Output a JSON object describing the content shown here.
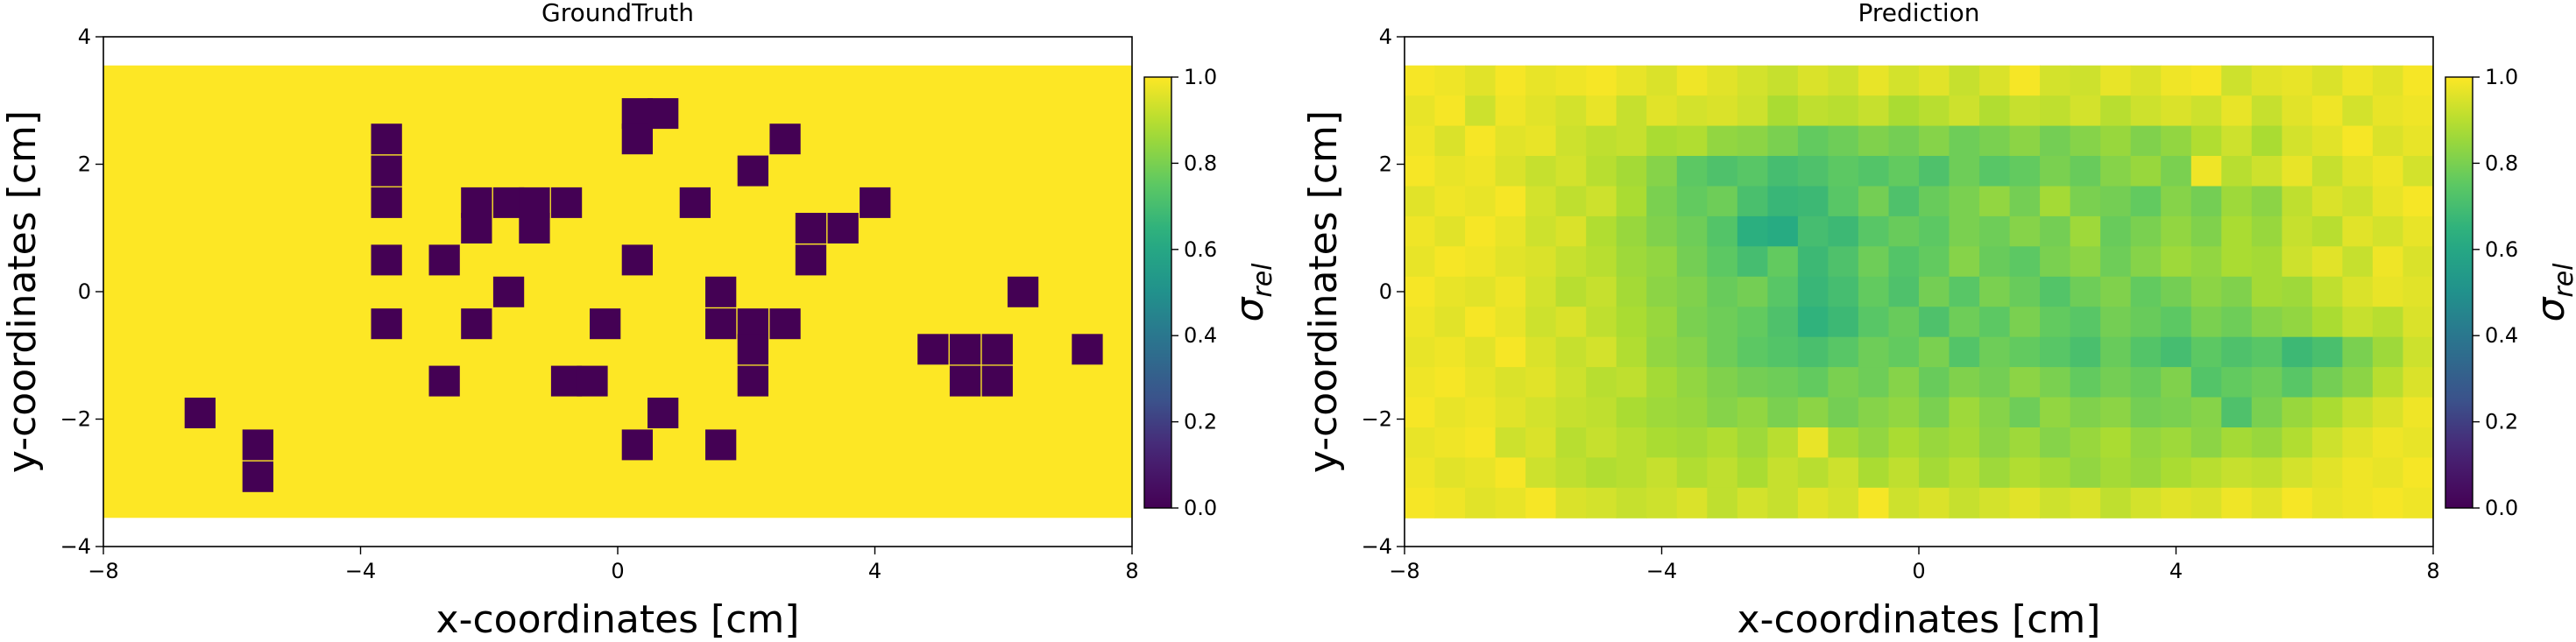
{
  "chart_data": [
    {
      "type": "heatmap",
      "title": "GroundTruth",
      "xlabel": "x-coordinates [cm]",
      "ylabel": "y-coordinates [cm]",
      "xlim": [
        -8,
        8
      ],
      "ylim": [
        -4,
        4
      ],
      "xticks": [
        "−8",
        "−4",
        "0",
        "4",
        "8"
      ],
      "yticks": [
        "−4",
        "−2",
        "0",
        "2",
        "4"
      ],
      "grid": false,
      "extent": {
        "x": [
          -8,
          8
        ],
        "y": [
          -3.55,
          3.55
        ]
      },
      "cell_size_cm": 0.473,
      "background_value": 1.0,
      "zero_cells": [
        [
          -6.5,
          -1.9
        ],
        [
          -5.6,
          -2.9
        ],
        [
          -5.6,
          -2.4
        ],
        [
          -3.6,
          2.4
        ],
        [
          -3.6,
          1.9
        ],
        [
          -3.6,
          1.4
        ],
        [
          -3.6,
          0.5
        ],
        [
          -3.6,
          -0.5
        ],
        [
          -2.7,
          0.5
        ],
        [
          -2.2,
          1.4
        ],
        [
          -2.2,
          1.0
        ],
        [
          -1.7,
          1.4
        ],
        [
          -1.3,
          1.4
        ],
        [
          -1.3,
          1.0
        ],
        [
          -0.8,
          1.4
        ],
        [
          -2.2,
          -0.5
        ],
        [
          -1.7,
          0.0
        ],
        [
          -2.7,
          -1.4
        ],
        [
          -0.8,
          -1.4
        ],
        [
          -0.4,
          -1.4
        ],
        [
          -0.2,
          -0.5
        ],
        [
          0.3,
          0.5
        ],
        [
          0.3,
          2.8
        ],
        [
          0.3,
          2.4
        ],
        [
          0.7,
          2.8
        ],
        [
          1.2,
          1.4
        ],
        [
          0.3,
          -2.4
        ],
        [
          0.7,
          -1.9
        ],
        [
          1.6,
          -2.4
        ],
        [
          1.6,
          0.0
        ],
        [
          1.6,
          -0.5
        ],
        [
          2.1,
          -0.5
        ],
        [
          2.6,
          -0.5
        ],
        [
          2.1,
          -0.9
        ],
        [
          2.1,
          -1.4
        ],
        [
          2.1,
          1.9
        ],
        [
          2.6,
          2.4
        ],
        [
          3.0,
          1.0
        ],
        [
          3.0,
          0.5
        ],
        [
          3.5,
          1.0
        ],
        [
          4.0,
          1.4
        ],
        [
          4.9,
          -0.9
        ],
        [
          5.4,
          -0.9
        ],
        [
          5.4,
          -1.4
        ],
        [
          5.9,
          -0.9
        ],
        [
          5.9,
          -1.4
        ],
        [
          6.3,
          0.0
        ],
        [
          7.3,
          -0.9
        ]
      ],
      "colorbar": {
        "label": "σ",
        "label_sub": "rel",
        "ticks": [
          "0.0",
          "0.2",
          "0.4",
          "0.6",
          "0.8",
          "1.0"
        ],
        "range": [
          0,
          1
        ],
        "colormap": "viridis"
      }
    },
    {
      "type": "heatmap",
      "title": "Prediction",
      "xlabel": "x-coordinates [cm]",
      "ylabel": "y-coordinates [cm]",
      "xlim": [
        -8,
        8
      ],
      "ylim": [
        -4,
        4
      ],
      "xticks": [
        "−8",
        "−4",
        "0",
        "4",
        "8"
      ],
      "yticks": [
        "−4",
        "−2",
        "0",
        "2",
        "4"
      ],
      "grid": false,
      "extent": {
        "x": [
          -8,
          8
        ],
        "y": [
          -3.55,
          3.55
        ]
      },
      "value_range": [
        0.55,
        1.0
      ],
      "grid_cells": {
        "cols": 34,
        "rows": 15
      },
      "values": [
        [
          0.99,
          0.98,
          0.96,
          0.99,
          0.97,
          0.98,
          0.99,
          0.97,
          0.95,
          0.98,
          0.96,
          0.94,
          0.92,
          0.95,
          0.93,
          0.97,
          0.94,
          0.96,
          0.92,
          0.95,
          0.99,
          0.94,
          0.93,
          0.97,
          0.95,
          0.98,
          0.99,
          0.93,
          0.96,
          0.97,
          0.95,
          0.98,
          0.96,
          0.99
        ],
        [
          0.97,
          0.99,
          0.93,
          0.98,
          0.96,
          0.94,
          0.97,
          0.92,
          0.96,
          0.94,
          0.95,
          0.93,
          0.88,
          0.91,
          0.9,
          0.92,
          0.88,
          0.9,
          0.93,
          0.89,
          0.92,
          0.91,
          0.94,
          0.9,
          0.93,
          0.95,
          0.93,
          0.97,
          0.92,
          0.96,
          0.98,
          0.94,
          0.97,
          0.98
        ],
        [
          0.98,
          0.95,
          0.99,
          0.96,
          0.97,
          0.93,
          0.91,
          0.92,
          0.88,
          0.89,
          0.84,
          0.83,
          0.8,
          0.76,
          0.78,
          0.81,
          0.79,
          0.82,
          0.78,
          0.8,
          0.83,
          0.79,
          0.82,
          0.85,
          0.81,
          0.84,
          0.89,
          0.93,
          0.88,
          0.94,
          0.96,
          0.99,
          0.95,
          0.97
        ],
        [
          0.99,
          0.97,
          0.98,
          0.95,
          0.92,
          0.94,
          0.9,
          0.87,
          0.82,
          0.75,
          0.72,
          0.74,
          0.7,
          0.72,
          0.75,
          0.73,
          0.76,
          0.72,
          0.78,
          0.74,
          0.76,
          0.8,
          0.77,
          0.82,
          0.85,
          0.8,
          0.98,
          0.9,
          0.93,
          0.97,
          0.92,
          0.96,
          0.98,
          0.94
        ],
        [
          0.96,
          0.98,
          0.97,
          0.99,
          0.94,
          0.91,
          0.93,
          0.88,
          0.8,
          0.76,
          0.78,
          0.71,
          0.67,
          0.68,
          0.74,
          0.79,
          0.72,
          0.77,
          0.8,
          0.84,
          0.79,
          0.87,
          0.8,
          0.79,
          0.76,
          0.82,
          0.79,
          0.86,
          0.83,
          0.91,
          0.95,
          0.93,
          0.97,
          0.99
        ],
        [
          0.98,
          0.96,
          0.99,
          0.97,
          0.93,
          0.95,
          0.89,
          0.85,
          0.81,
          0.78,
          0.73,
          0.64,
          0.62,
          0.7,
          0.68,
          0.74,
          0.77,
          0.75,
          0.8,
          0.78,
          0.82,
          0.79,
          0.86,
          0.77,
          0.8,
          0.84,
          0.81,
          0.88,
          0.85,
          0.92,
          0.9,
          0.96,
          0.94,
          0.97
        ],
        [
          0.97,
          0.99,
          0.98,
          0.96,
          0.95,
          0.92,
          0.9,
          0.86,
          0.84,
          0.79,
          0.75,
          0.7,
          0.76,
          0.68,
          0.72,
          0.78,
          0.73,
          0.76,
          0.82,
          0.77,
          0.75,
          0.8,
          0.83,
          0.78,
          0.82,
          0.86,
          0.84,
          0.88,
          0.87,
          0.93,
          0.96,
          0.92,
          0.98,
          0.95
        ],
        [
          0.99,
          0.97,
          0.96,
          0.98,
          0.94,
          0.9,
          0.92,
          0.87,
          0.83,
          0.81,
          0.77,
          0.79,
          0.74,
          0.67,
          0.7,
          0.76,
          0.72,
          0.79,
          0.74,
          0.8,
          0.77,
          0.73,
          0.78,
          0.81,
          0.76,
          0.79,
          0.83,
          0.81,
          0.87,
          0.86,
          0.91,
          0.95,
          0.97,
          0.96
        ],
        [
          0.98,
          0.96,
          0.99,
          0.97,
          0.93,
          0.95,
          0.91,
          0.88,
          0.85,
          0.8,
          0.78,
          0.76,
          0.72,
          0.65,
          0.68,
          0.74,
          0.77,
          0.72,
          0.78,
          0.75,
          0.8,
          0.76,
          0.74,
          0.79,
          0.77,
          0.75,
          0.8,
          0.78,
          0.82,
          0.84,
          0.88,
          0.92,
          0.9,
          0.95
        ],
        [
          0.97,
          0.98,
          0.96,
          0.99,
          0.95,
          0.92,
          0.94,
          0.89,
          0.84,
          0.82,
          0.78,
          0.75,
          0.73,
          0.71,
          0.74,
          0.78,
          0.76,
          0.8,
          0.73,
          0.78,
          0.76,
          0.74,
          0.71,
          0.77,
          0.73,
          0.7,
          0.75,
          0.72,
          0.74,
          0.68,
          0.71,
          0.8,
          0.86,
          0.93
        ],
        [
          0.98,
          0.99,
          0.97,
          0.95,
          0.96,
          0.93,
          0.9,
          0.91,
          0.87,
          0.84,
          0.81,
          0.79,
          0.78,
          0.76,
          0.8,
          0.78,
          0.82,
          0.77,
          0.81,
          0.79,
          0.83,
          0.8,
          0.76,
          0.79,
          0.77,
          0.81,
          0.73,
          0.76,
          0.78,
          0.74,
          0.79,
          0.83,
          0.9,
          0.95
        ],
        [
          0.99,
          0.97,
          0.98,
          0.96,
          0.94,
          0.92,
          0.91,
          0.88,
          0.86,
          0.85,
          0.82,
          0.84,
          0.8,
          0.83,
          0.79,
          0.82,
          0.84,
          0.8,
          0.86,
          0.82,
          0.78,
          0.84,
          0.81,
          0.83,
          0.79,
          0.8,
          0.82,
          0.72,
          0.8,
          0.85,
          0.88,
          0.92,
          0.95,
          0.98
        ],
        [
          0.97,
          0.98,
          0.99,
          0.93,
          0.95,
          0.9,
          0.92,
          0.9,
          0.88,
          0.87,
          0.89,
          0.86,
          0.9,
          0.97,
          0.87,
          0.84,
          0.88,
          0.85,
          0.87,
          0.83,
          0.86,
          0.82,
          0.85,
          0.88,
          0.84,
          0.86,
          0.83,
          0.87,
          0.85,
          0.89,
          0.93,
          0.96,
          0.98,
          0.97
        ],
        [
          0.98,
          0.96,
          0.97,
          0.99,
          0.93,
          0.91,
          0.89,
          0.9,
          0.92,
          0.89,
          0.91,
          0.88,
          0.92,
          0.9,
          0.93,
          0.88,
          0.91,
          0.87,
          0.9,
          0.86,
          0.89,
          0.87,
          0.84,
          0.87,
          0.85,
          0.88,
          0.9,
          0.92,
          0.91,
          0.94,
          0.96,
          0.98,
          0.97,
          0.99
        ],
        [
          0.99,
          0.98,
          0.96,
          0.97,
          0.99,
          0.95,
          0.94,
          0.92,
          0.93,
          0.95,
          0.91,
          0.94,
          0.92,
          0.96,
          0.94,
          0.99,
          0.93,
          0.95,
          0.92,
          0.94,
          0.96,
          0.93,
          0.95,
          0.91,
          0.94,
          0.96,
          0.95,
          0.98,
          0.96,
          0.99,
          0.97,
          0.98,
          0.99,
          0.98
        ]
      ],
      "colorbar": {
        "label": "σ",
        "label_sub": "rel",
        "ticks": [
          "0.0",
          "0.2",
          "0.4",
          "0.6",
          "0.8",
          "1.0"
        ],
        "range": [
          0,
          1
        ],
        "colormap": "viridis"
      }
    }
  ]
}
